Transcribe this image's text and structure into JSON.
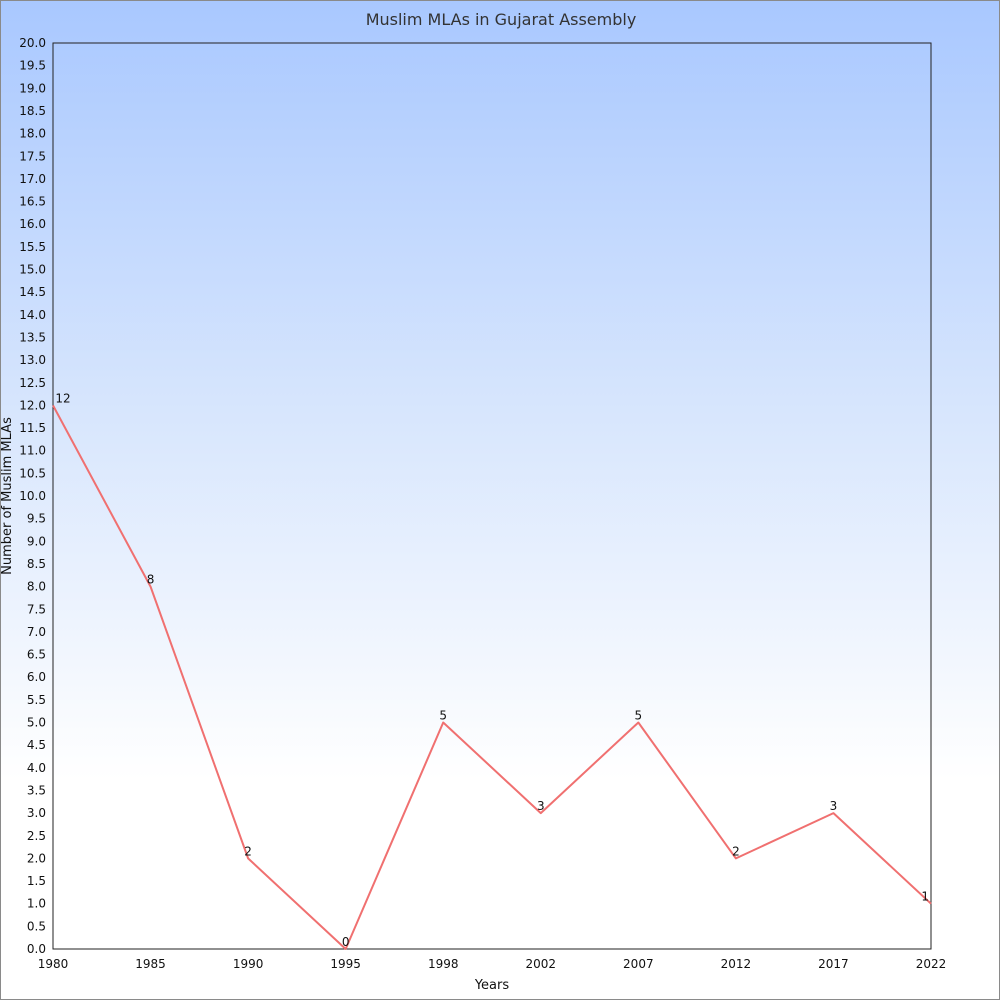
{
  "chart_data": {
    "type": "line",
    "title": "Muslim MLAs in Gujarat Assembly",
    "xlabel": "Years",
    "ylabel": "Number of Muslim MLAs",
    "categories": [
      "1980",
      "1985",
      "1990",
      "1995",
      "1998",
      "2002",
      "2007",
      "2012",
      "2017",
      "2022"
    ],
    "series": [
      {
        "values": [
          12,
          8,
          2,
          0,
          5,
          3,
          5,
          2,
          3,
          1
        ],
        "color": "#f07070"
      }
    ],
    "data_labels": [
      "12",
      "8",
      "2",
      "0",
      "5",
      "3",
      "5",
      "2",
      "3",
      "1"
    ],
    "ylim": [
      0,
      20
    ],
    "ytick_step": 0.5,
    "ytick_labels": [
      "0.0",
      "0.5",
      "1.0",
      "1.5",
      "2.0",
      "2.5",
      "3.0",
      "3.5",
      "4.0",
      "4.5",
      "5.0",
      "5.5",
      "6.0",
      "6.5",
      "7.0",
      "7.5",
      "8.0",
      "8.5",
      "9.0",
      "9.5",
      "10.0",
      "10.5",
      "11.0",
      "11.5",
      "12.0",
      "12.5",
      "13.0",
      "13.5",
      "14.0",
      "14.5",
      "15.0",
      "15.5",
      "16.0",
      "16.5",
      "17.0",
      "17.5",
      "18.0",
      "18.5",
      "19.0",
      "19.5",
      "20.0"
    ],
    "grid": false,
    "legend": "none"
  }
}
